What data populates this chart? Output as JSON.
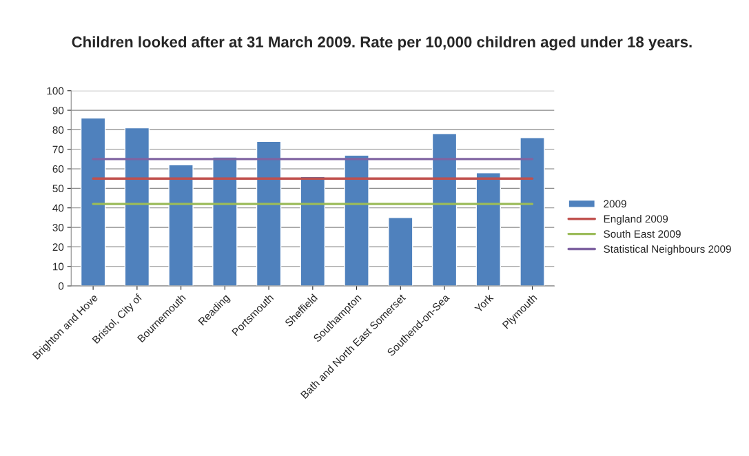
{
  "chart_data": {
    "type": "bar",
    "title": "Children looked after at 31 March 2009. Rate per 10,000 children aged under 18 years.",
    "categories": [
      "Brighton and Hove",
      "Bristol, City of",
      "Bournemouth",
      "Reading",
      "Portsmouth",
      "Sheffield",
      "Southampton",
      "Bath and North East Somerset",
      "Southend-on-Sea",
      "York",
      "Plymouth"
    ],
    "series": [
      {
        "name": "2009",
        "color": "#4f81bd",
        "values": [
          86,
          81,
          62,
          66,
          74,
          56,
          67,
          35,
          78,
          58,
          76
        ]
      },
      {
        "name": "England 2009",
        "type": "line",
        "color": "#c0504d",
        "values": [
          55,
          55,
          55,
          55,
          55,
          55,
          55,
          55,
          55,
          55,
          55
        ]
      },
      {
        "name": "South East 2009",
        "type": "line",
        "color": "#9bbb59",
        "values": [
          42,
          42,
          42,
          42,
          42,
          42,
          42,
          42,
          42,
          42,
          42
        ]
      },
      {
        "name": "Statistical Neighbours 2009",
        "type": "line",
        "color": "#8064a2",
        "values": [
          65,
          65,
          65,
          65,
          65,
          65,
          65,
          65,
          65,
          65,
          65
        ]
      }
    ],
    "ylim": [
      0,
      100
    ],
    "yticks": [
      0,
      10,
      20,
      30,
      40,
      50,
      60,
      70,
      80,
      90,
      100
    ],
    "grid": "y",
    "legend": "right"
  }
}
